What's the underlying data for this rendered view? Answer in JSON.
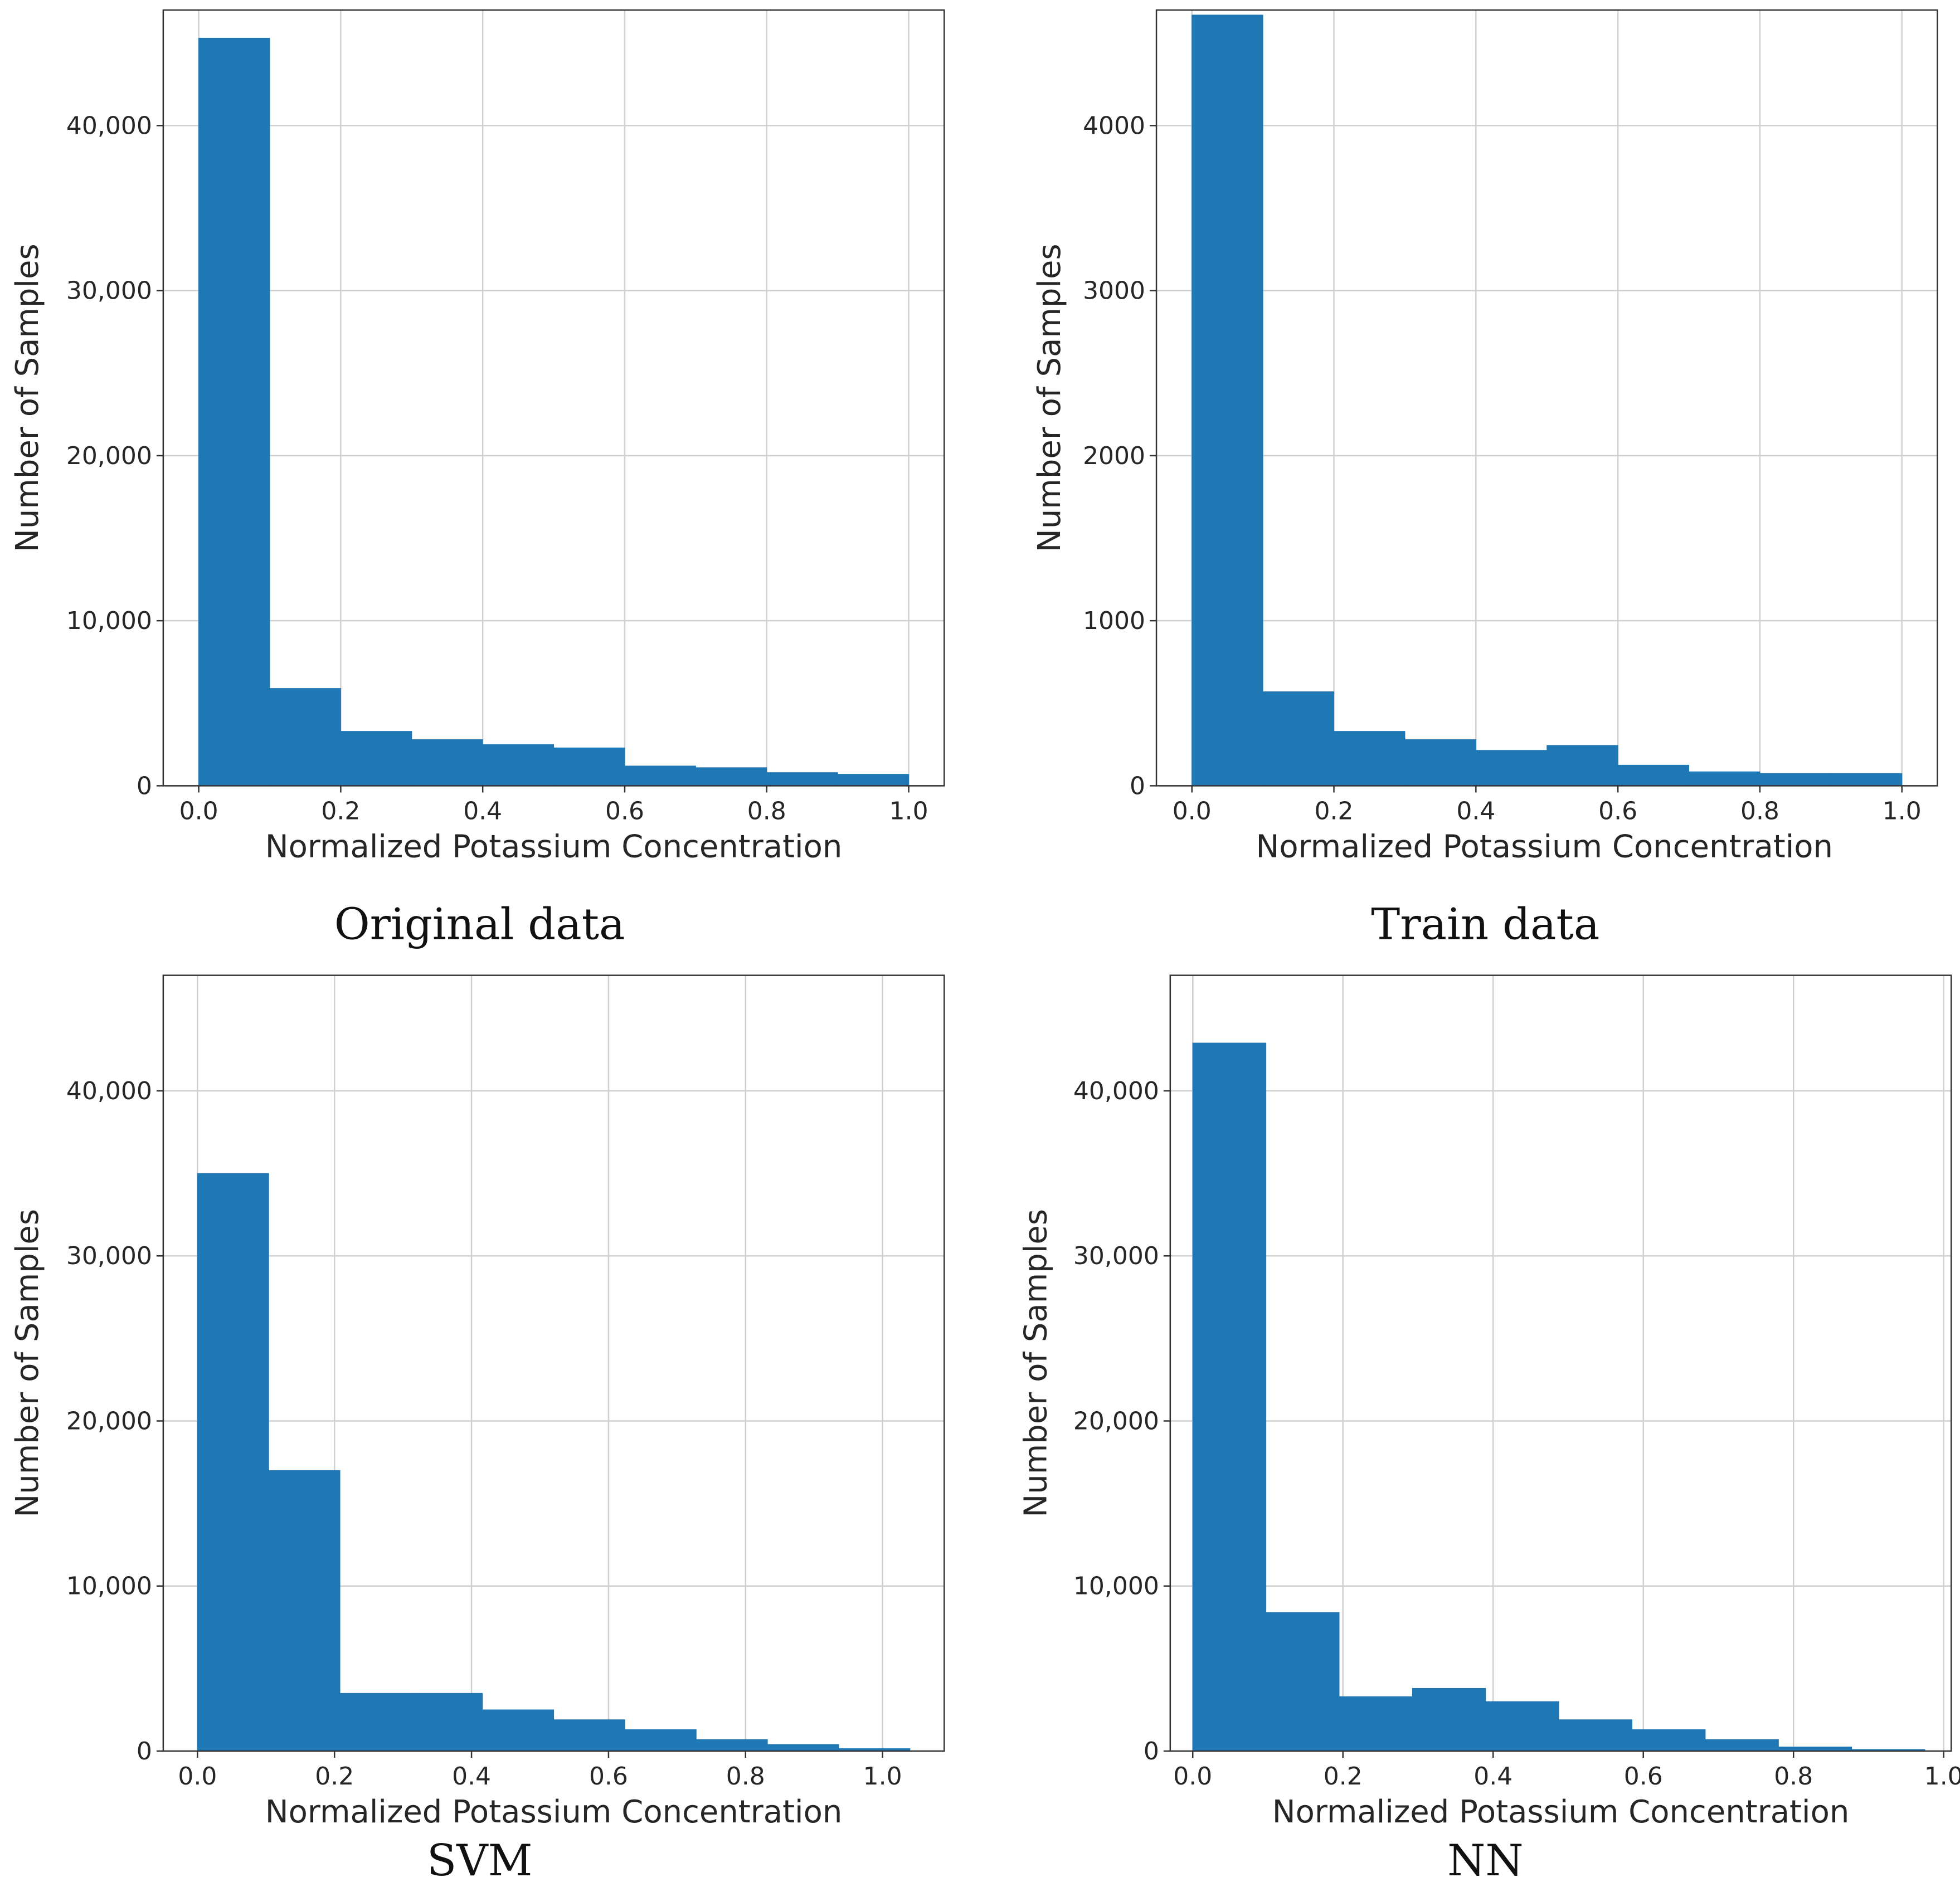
{
  "colors": {
    "bar": "#1f77b4",
    "grid": "#d0d0d0",
    "frame": "#333333"
  },
  "chart_data": [
    {
      "type": "bar",
      "title": "Original data",
      "xlabel": "Normalized Potassium Concentration",
      "ylabel": "Number of Samples",
      "xlim": [
        -0.05,
        1.05
      ],
      "ylim": [
        0,
        47000
      ],
      "xticks": [
        0.0,
        0.2,
        0.4,
        0.6,
        0.8,
        1.0
      ],
      "xtick_labels": [
        "0.0",
        "0.2",
        "0.4",
        "0.6",
        "0.8",
        "1.0"
      ],
      "yticks": [
        0,
        10000,
        20000,
        30000,
        40000
      ],
      "ytick_labels": [
        "0",
        "10,000",
        "20,000",
        "30,000",
        "40,000"
      ],
      "bin_edges": [
        0.0,
        0.1,
        0.2,
        0.3,
        0.4,
        0.5,
        0.6,
        0.7,
        0.8,
        0.9,
        1.0
      ],
      "values": [
        45300,
        5900,
        3300,
        2800,
        2500,
        2300,
        1200,
        1100,
        800,
        700
      ],
      "grid": true
    },
    {
      "type": "bar",
      "title": "Train data",
      "xlabel": "Normalized Potassium Concentration",
      "ylabel": "Number of Samples",
      "xlim": [
        -0.05,
        1.05
      ],
      "ylim": [
        0,
        4700
      ],
      "xticks": [
        0.0,
        0.2,
        0.4,
        0.6,
        0.8,
        1.0
      ],
      "xtick_labels": [
        "0.0",
        "0.2",
        "0.4",
        "0.6",
        "0.8",
        "1.0"
      ],
      "yticks": [
        0,
        1000,
        2000,
        3000,
        4000
      ],
      "ytick_labels": [
        "0",
        "1000",
        "2000",
        "3000",
        "4000"
      ],
      "bin_edges": [
        0.0,
        0.1,
        0.2,
        0.3,
        0.4,
        0.5,
        0.6,
        0.7,
        0.8,
        0.9,
        1.0
      ],
      "values": [
        4670,
        570,
        330,
        280,
        215,
        245,
        125,
        85,
        75,
        75
      ],
      "grid": true
    },
    {
      "type": "bar",
      "title": "SVM",
      "xlabel": "Normalized Potassium Concentration",
      "ylabel": "Number of Samples",
      "xlim": [
        -0.05,
        1.09
      ],
      "ylim": [
        0,
        47000
      ],
      "xticks": [
        0.0,
        0.2,
        0.4,
        0.6,
        0.8,
        1.0
      ],
      "xtick_labels": [
        "0.0",
        "0.2",
        "0.4",
        "0.6",
        "0.8",
        "1.0"
      ],
      "yticks": [
        0,
        10000,
        20000,
        30000,
        40000
      ],
      "ytick_labels": [
        "0",
        "10,000",
        "20,000",
        "30,000",
        "40,000"
      ],
      "bin_edges": [
        0.0,
        0.104,
        0.208,
        0.312,
        0.416,
        0.52,
        0.624,
        0.728,
        0.832,
        0.936,
        1.04
      ],
      "values": [
        35000,
        17000,
        3500,
        3500,
        2500,
        1900,
        1300,
        700,
        400,
        150
      ],
      "grid": true
    },
    {
      "type": "bar",
      "title": "NN",
      "xlabel": "Normalized Potassium Concentration",
      "ylabel": "Number of Samples",
      "xlim": [
        -0.03,
        1.01
      ],
      "ylim": [
        0,
        47000
      ],
      "xticks": [
        0.0,
        0.2,
        0.4,
        0.6,
        0.8,
        1.0
      ],
      "xtick_labels": [
        "0.0",
        "0.2",
        "0.4",
        "0.6",
        "0.8",
        "1.0"
      ],
      "yticks": [
        0,
        10000,
        20000,
        30000,
        40000
      ],
      "ytick_labels": [
        "0",
        "10,000",
        "20,000",
        "30,000",
        "40,000"
      ],
      "bin_edges": [
        0.0,
        0.0975,
        0.195,
        0.2925,
        0.39,
        0.4875,
        0.585,
        0.6825,
        0.78,
        0.8775,
        0.975
      ],
      "values": [
        42900,
        8400,
        3300,
        3800,
        3000,
        1900,
        1300,
        700,
        250,
        100
      ],
      "grid": true
    }
  ]
}
